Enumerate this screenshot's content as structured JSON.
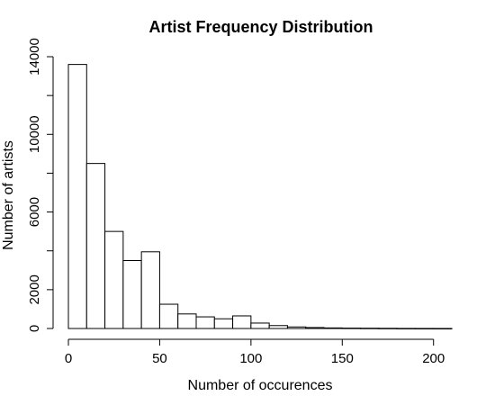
{
  "chart_data": {
    "type": "bar",
    "title": "Artist Frequency Distribution",
    "xlabel": "Number of occurences",
    "ylabel": "Number of artists",
    "xlim": [
      0,
      210
    ],
    "ylim": [
      0,
      14000
    ],
    "x_ticks": [
      0,
      50,
      100,
      150,
      200
    ],
    "y_ticks": [
      0,
      2000,
      6000,
      10000,
      14000
    ],
    "bin_edges": [
      0,
      10,
      20,
      30,
      40,
      50,
      60,
      70,
      80,
      90,
      100,
      110,
      120,
      130,
      140,
      150,
      160,
      170,
      180,
      190,
      200,
      210
    ],
    "values": [
      13600,
      8500,
      5000,
      3500,
      3950,
      1250,
      750,
      600,
      500,
      650,
      280,
      150,
      80,
      50,
      30,
      20,
      15,
      10,
      5,
      3,
      2
    ],
    "grid": false,
    "legend": "none"
  }
}
